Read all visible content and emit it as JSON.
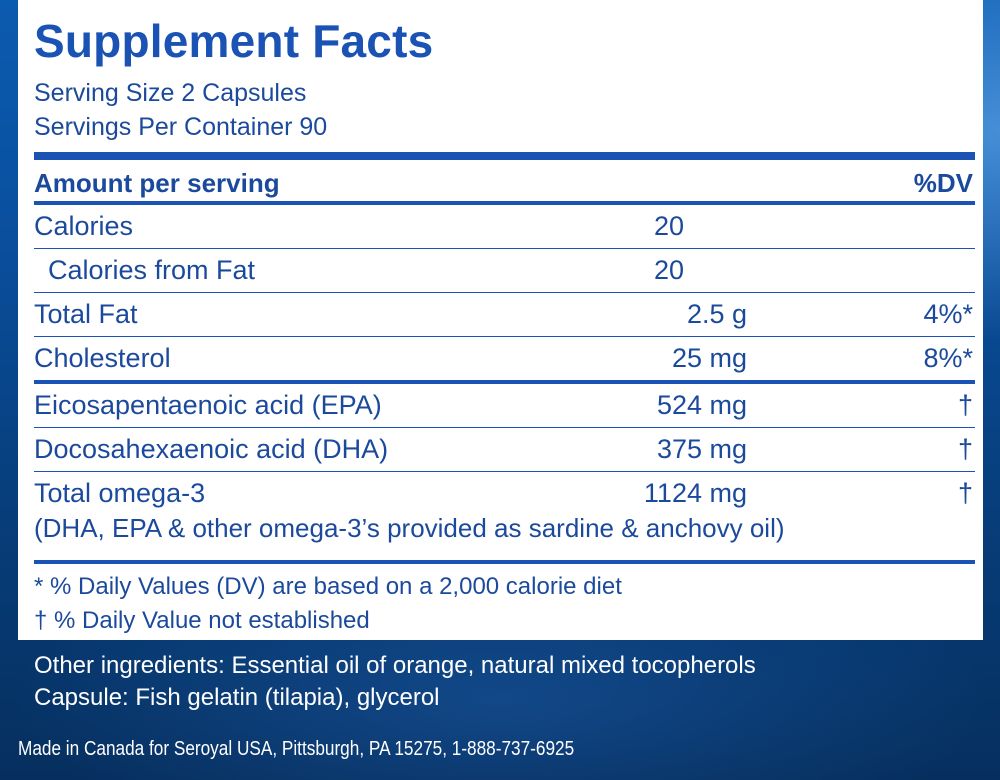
{
  "label": {
    "title": "Supplement Facts",
    "serving_size": "Serving Size 2 Capsules",
    "servings_per_container": "Servings Per Container 90",
    "header": {
      "amount_per_serving": "Amount per serving",
      "dv": "%DV"
    },
    "nutrients": [
      {
        "name": "Calories",
        "amount": "20",
        "dv": ""
      },
      {
        "name": "Calories from Fat",
        "amount": "20",
        "dv": ""
      },
      {
        "name": "Total Fat",
        "amount": "2.5 g",
        "dv": "4%*"
      },
      {
        "name": "Cholesterol",
        "amount": "25 mg",
        "dv": "8%*"
      }
    ],
    "fatty_acids": [
      {
        "name": "Eicosapentaenoic acid (EPA)",
        "amount": "524 mg",
        "dv": "†"
      },
      {
        "name": "Docosahexaenoic acid (DHA)",
        "amount": "375 mg",
        "dv": "†"
      },
      {
        "name": "Total omega-3",
        "amount": "1124 mg",
        "dv": "†",
        "note": "(DHA, EPA & other omega-3’s provided as sardine & anchovy oil)"
      }
    ],
    "footnotes": [
      "* % Daily Values (DV) are based on a 2,000 calorie diet",
      "† % Daily Value not established"
    ]
  },
  "ingredients": {
    "other": "Other ingredients: Essential oil of orange, natural mixed tocopherols",
    "capsule": "Capsule: Fish gelatin (tilapia), glycerol"
  },
  "manufacturer": "Made in Canada for Seroyal USA, Pittsburgh, PA 15275, 1-888-737-6925",
  "colors": {
    "label_blue": "#1b53b4",
    "background_blue": "#0a4f9e",
    "panel": "#ffffff"
  }
}
